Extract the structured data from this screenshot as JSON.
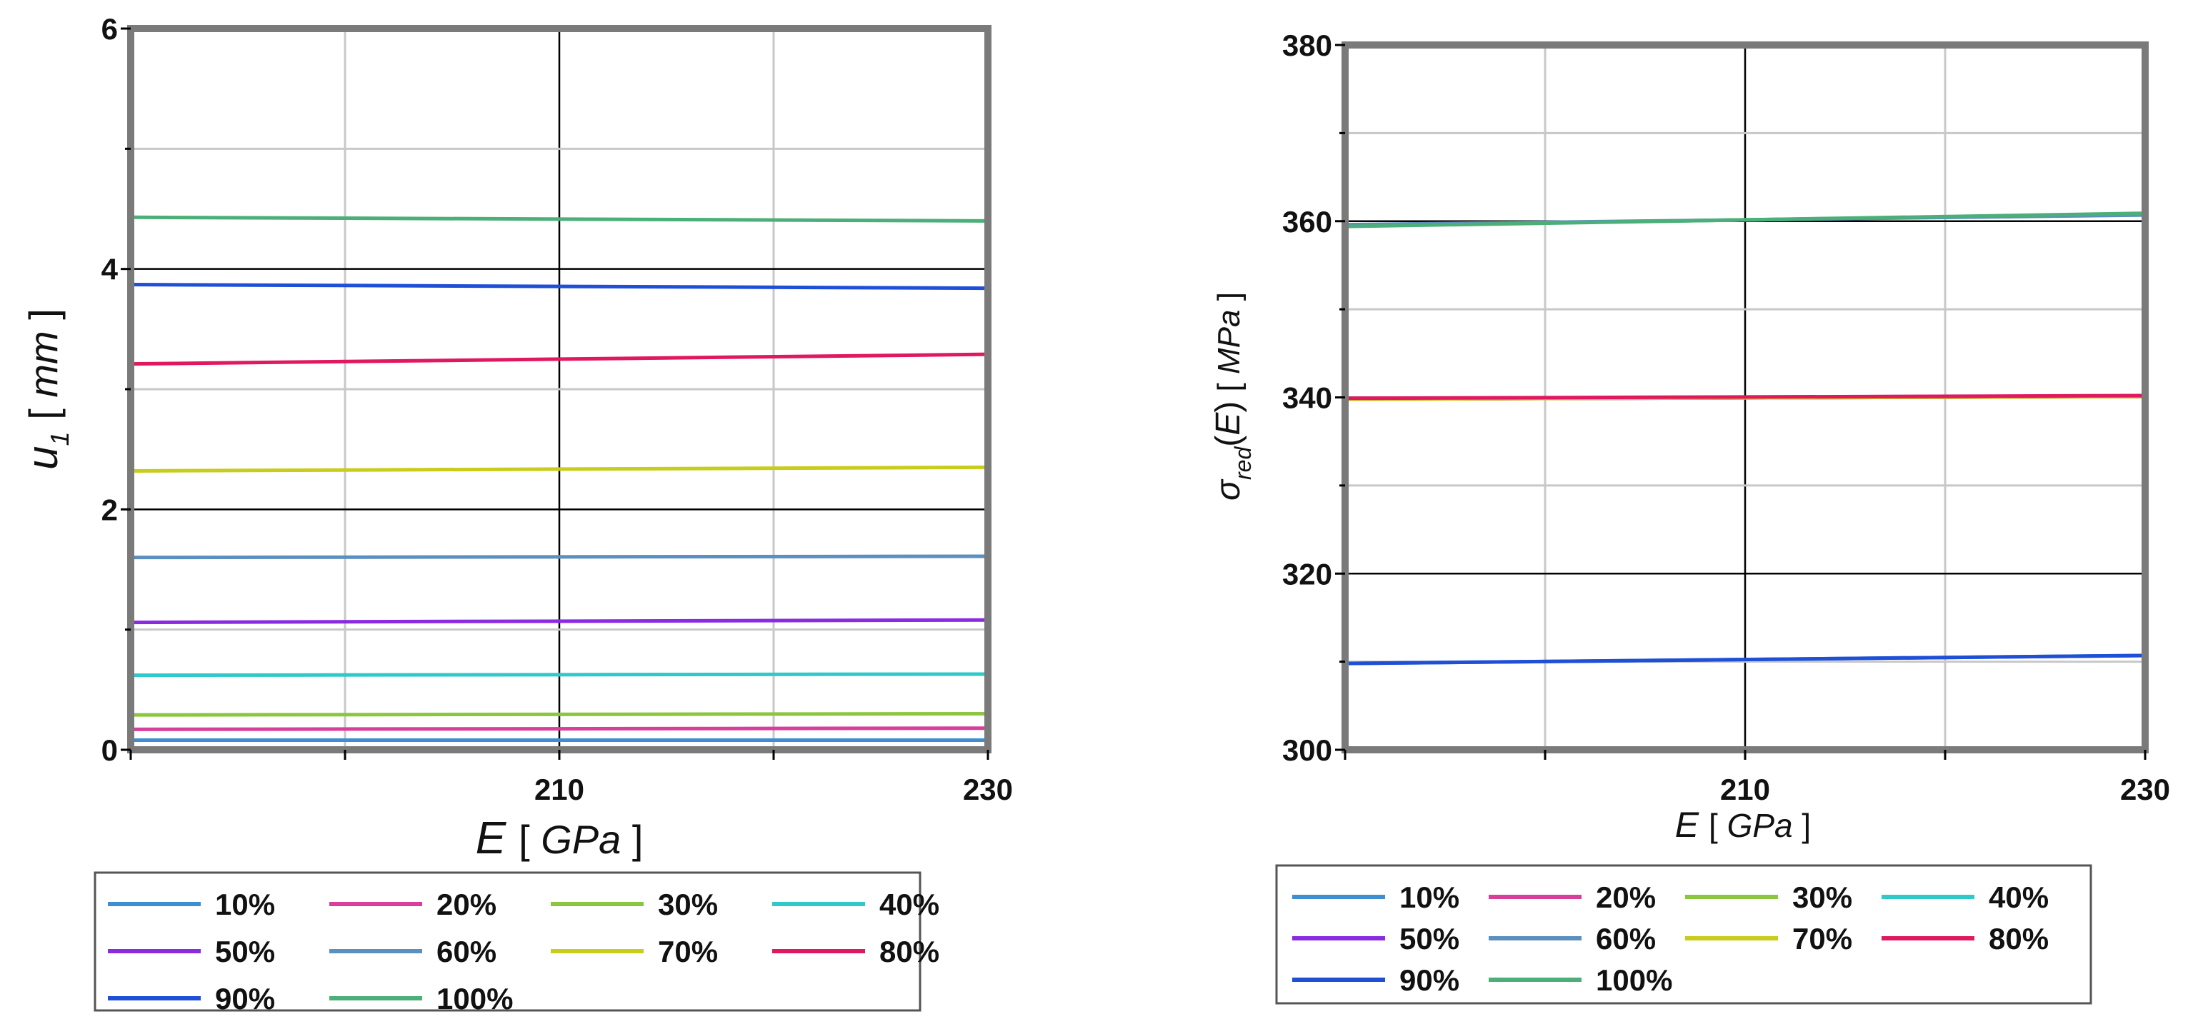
{
  "chart_data": [
    {
      "type": "line",
      "xlabel": "E",
      "xlabel_unit": "GPa",
      "ylabel": "u",
      "ylabel_sub": "1",
      "ylabel_unit": "mm",
      "xlim": [
        190,
        230
      ],
      "ylim": [
        0,
        6
      ],
      "x_ticks": [
        210,
        230
      ],
      "y_ticks": [
        0,
        2,
        4,
        6
      ],
      "x_grid": [
        200,
        210,
        220
      ],
      "y_grid": [
        1,
        2,
        3,
        4,
        5
      ],
      "grid": true,
      "legend_position": "bottom",
      "series": [
        {
          "name": "10%",
          "color": "#3d8fd1",
          "x": [
            190,
            230
          ],
          "y": [
            0.08,
            0.08
          ]
        },
        {
          "name": "20%",
          "color": "#d63f9a",
          "x": [
            190,
            230
          ],
          "y": [
            0.17,
            0.18
          ]
        },
        {
          "name": "30%",
          "color": "#8cc63f",
          "x": [
            190,
            230
          ],
          "y": [
            0.29,
            0.3
          ]
        },
        {
          "name": "40%",
          "color": "#2fc9c9",
          "x": [
            190,
            230
          ],
          "y": [
            0.62,
            0.63
          ]
        },
        {
          "name": "50%",
          "color": "#8a2be2",
          "x": [
            190,
            230
          ],
          "y": [
            1.06,
            1.08
          ]
        },
        {
          "name": "60%",
          "color": "#5b8fbf",
          "x": [
            190,
            230
          ],
          "y": [
            1.6,
            1.61
          ]
        },
        {
          "name": "70%",
          "color": "#c8cc1a",
          "x": [
            190,
            230
          ],
          "y": [
            2.32,
            2.35
          ]
        },
        {
          "name": "80%",
          "color": "#e0185f",
          "x": [
            190,
            230
          ],
          "y": [
            3.21,
            3.29
          ]
        },
        {
          "name": "90%",
          "color": "#1f4fd6",
          "x": [
            190,
            230
          ],
          "y": [
            3.87,
            3.84
          ]
        },
        {
          "name": "100%",
          "color": "#4caf7a",
          "x": [
            190,
            230
          ],
          "y": [
            4.43,
            4.4
          ]
        }
      ]
    },
    {
      "type": "line",
      "xlabel": "E",
      "xlabel_unit": "GPa",
      "ylabel": "σ",
      "ylabel_sub": "red",
      "ylabel_arg": "E",
      "ylabel_unit": "MPa",
      "xlim": [
        190,
        230
      ],
      "ylim": [
        300,
        380
      ],
      "x_ticks": [
        210,
        230
      ],
      "y_ticks": [
        300,
        320,
        340,
        360,
        380
      ],
      "x_grid": [
        200,
        210,
        220
      ],
      "y_grid": [
        310,
        320,
        330,
        340,
        350,
        360,
        370
      ],
      "grid": true,
      "legend_position": "bottom",
      "series": [
        {
          "name": "10%",
          "color": "#3d8fd1",
          "x": [
            190,
            230
          ],
          "y": [
            309.8,
            310.7
          ]
        },
        {
          "name": "20%",
          "color": "#d63f9a",
          "x": [
            190,
            230
          ],
          "y": [
            339.8,
            340.1
          ]
        },
        {
          "name": "30%",
          "color": "#8cc63f",
          "x": [
            190,
            230
          ],
          "y": [
            359.5,
            360.8
          ]
        },
        {
          "name": "40%",
          "color": "#2fc9c9",
          "x": [
            190,
            230
          ],
          "y": [
            359.5,
            360.8
          ]
        },
        {
          "name": "50%",
          "color": "#8a2be2",
          "x": [
            190,
            230
          ],
          "y": [
            339.8,
            340.1
          ]
        },
        {
          "name": "60%",
          "color": "#5b8fbf",
          "x": [
            190,
            230
          ],
          "y": [
            359.6,
            360.7
          ]
        },
        {
          "name": "70%",
          "color": "#c8cc1a",
          "x": [
            190,
            230
          ],
          "y": [
            339.8,
            340.1
          ]
        },
        {
          "name": "80%",
          "color": "#e0185f",
          "x": [
            190,
            230
          ],
          "y": [
            339.9,
            340.2
          ]
        },
        {
          "name": "90%",
          "color": "#1f4fd6",
          "x": [
            190,
            230
          ],
          "y": [
            309.8,
            310.7
          ]
        },
        {
          "name": "100%",
          "color": "#4caf7a",
          "x": [
            190,
            230
          ],
          "y": [
            359.4,
            360.9
          ]
        }
      ]
    }
  ]
}
